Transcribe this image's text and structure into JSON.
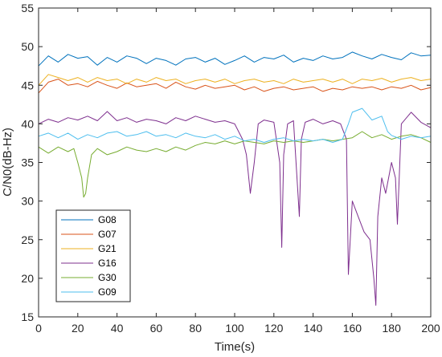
{
  "chart_data": {
    "type": "line",
    "xlabel": "Time(s)",
    "ylabel": "C/N0(dB-Hz)",
    "xlim": [
      0,
      200
    ],
    "ylim": [
      15,
      55
    ],
    "x_ticks": [
      "0",
      "20",
      "40",
      "60",
      "80",
      "100",
      "120",
      "140",
      "160",
      "180",
      "200"
    ],
    "y_ticks": [
      "15",
      "20",
      "25",
      "30",
      "35",
      "40",
      "45",
      "50",
      "55"
    ],
    "grid": false,
    "legend_position": "lower-left",
    "series": [
      {
        "name": "G08",
        "color": "#0072BD",
        "points": [
          [
            0,
            47.5
          ],
          [
            5,
            48.8
          ],
          [
            10,
            48.0
          ],
          [
            15,
            49.0
          ],
          [
            20,
            48.5
          ],
          [
            25,
            48.7
          ],
          [
            30,
            47.6
          ],
          [
            35,
            48.6
          ],
          [
            40,
            48.0
          ],
          [
            45,
            48.8
          ],
          [
            50,
            48.5
          ],
          [
            55,
            47.8
          ],
          [
            60,
            48.5
          ],
          [
            65,
            48.2
          ],
          [
            70,
            47.6
          ],
          [
            75,
            48.4
          ],
          [
            80,
            48.6
          ],
          [
            85,
            48.0
          ],
          [
            90,
            48.5
          ],
          [
            95,
            47.7
          ],
          [
            100,
            48.2
          ],
          [
            105,
            48.8
          ],
          [
            110,
            48.0
          ],
          [
            115,
            48.6
          ],
          [
            120,
            48.4
          ],
          [
            125,
            48.9
          ],
          [
            130,
            48.0
          ],
          [
            135,
            48.5
          ],
          [
            140,
            48.2
          ],
          [
            145,
            48.8
          ],
          [
            150,
            48.4
          ],
          [
            155,
            48.6
          ],
          [
            160,
            49.3
          ],
          [
            165,
            48.8
          ],
          [
            170,
            48.4
          ],
          [
            175,
            49.0
          ],
          [
            180,
            48.6
          ],
          [
            185,
            48.3
          ],
          [
            190,
            49.2
          ],
          [
            195,
            48.8
          ],
          [
            200,
            48.9
          ]
        ]
      },
      {
        "name": "G07",
        "color": "#D95319",
        "points": [
          [
            0,
            44.0
          ],
          [
            5,
            45.4
          ],
          [
            10,
            45.8
          ],
          [
            15,
            45.0
          ],
          [
            20,
            45.2
          ],
          [
            25,
            44.8
          ],
          [
            30,
            45.5
          ],
          [
            35,
            45.0
          ],
          [
            40,
            44.6
          ],
          [
            45,
            45.3
          ],
          [
            50,
            44.8
          ],
          [
            55,
            45.0
          ],
          [
            60,
            45.2
          ],
          [
            65,
            44.6
          ],
          [
            70,
            45.4
          ],
          [
            75,
            44.8
          ],
          [
            80,
            44.5
          ],
          [
            85,
            45.0
          ],
          [
            90,
            44.6
          ],
          [
            95,
            44.8
          ],
          [
            100,
            45.0
          ],
          [
            105,
            44.4
          ],
          [
            110,
            44.8
          ],
          [
            115,
            44.2
          ],
          [
            120,
            44.6
          ],
          [
            125,
            44.8
          ],
          [
            130,
            44.4
          ],
          [
            135,
            44.6
          ],
          [
            140,
            44.8
          ],
          [
            145,
            44.2
          ],
          [
            150,
            44.6
          ],
          [
            155,
            44.4
          ],
          [
            160,
            44.8
          ],
          [
            165,
            44.6
          ],
          [
            170,
            44.8
          ],
          [
            175,
            44.4
          ],
          [
            180,
            44.8
          ],
          [
            185,
            44.6
          ],
          [
            190,
            45.0
          ],
          [
            195,
            44.4
          ],
          [
            200,
            44.7
          ]
        ]
      },
      {
        "name": "G21",
        "color": "#EDB120",
        "points": [
          [
            0,
            45.0
          ],
          [
            5,
            46.4
          ],
          [
            10,
            46.0
          ],
          [
            15,
            45.6
          ],
          [
            20,
            46.0
          ],
          [
            25,
            45.4
          ],
          [
            30,
            46.0
          ],
          [
            35,
            45.6
          ],
          [
            40,
            45.8
          ],
          [
            45,
            45.2
          ],
          [
            50,
            45.8
          ],
          [
            55,
            45.4
          ],
          [
            60,
            46.0
          ],
          [
            65,
            45.6
          ],
          [
            70,
            45.8
          ],
          [
            75,
            45.2
          ],
          [
            80,
            45.6
          ],
          [
            85,
            45.8
          ],
          [
            90,
            45.4
          ],
          [
            95,
            45.8
          ],
          [
            100,
            45.2
          ],
          [
            105,
            45.6
          ],
          [
            110,
            45.8
          ],
          [
            115,
            45.4
          ],
          [
            120,
            45.6
          ],
          [
            125,
            45.2
          ],
          [
            130,
            45.8
          ],
          [
            135,
            45.4
          ],
          [
            140,
            45.6
          ],
          [
            145,
            45.8
          ],
          [
            150,
            45.4
          ],
          [
            155,
            45.8
          ],
          [
            160,
            45.2
          ],
          [
            165,
            45.8
          ],
          [
            170,
            45.6
          ],
          [
            175,
            45.9
          ],
          [
            180,
            45.4
          ],
          [
            185,
            45.8
          ],
          [
            190,
            46.0
          ],
          [
            195,
            45.6
          ],
          [
            200,
            45.8
          ]
        ]
      },
      {
        "name": "G16",
        "color": "#7E2F8E",
        "points": [
          [
            0,
            40.0
          ],
          [
            5,
            40.6
          ],
          [
            10,
            40.2
          ],
          [
            15,
            40.8
          ],
          [
            20,
            40.5
          ],
          [
            25,
            41.0
          ],
          [
            30,
            40.4
          ],
          [
            35,
            41.6
          ],
          [
            40,
            40.4
          ],
          [
            45,
            40.8
          ],
          [
            50,
            40.2
          ],
          [
            55,
            40.6
          ],
          [
            60,
            40.4
          ],
          [
            65,
            40.0
          ],
          [
            70,
            40.8
          ],
          [
            75,
            40.4
          ],
          [
            80,
            41.0
          ],
          [
            85,
            40.6
          ],
          [
            90,
            40.2
          ],
          [
            95,
            40.4
          ],
          [
            100,
            40.0
          ],
          [
            104,
            38.0
          ],
          [
            106,
            36.0
          ],
          [
            108,
            31.0
          ],
          [
            110,
            35.0
          ],
          [
            112,
            40.0
          ],
          [
            115,
            40.5
          ],
          [
            120,
            40.2
          ],
          [
            123,
            35.0
          ],
          [
            124,
            24.0
          ],
          [
            125,
            36.0
          ],
          [
            127,
            40.0
          ],
          [
            130,
            40.4
          ],
          [
            133,
            28.0
          ],
          [
            134,
            38.0
          ],
          [
            136,
            40.2
          ],
          [
            140,
            40.6
          ],
          [
            145,
            40.0
          ],
          [
            150,
            40.4
          ],
          [
            154,
            40.0
          ],
          [
            157,
            38.0
          ],
          [
            158,
            20.5
          ],
          [
            160,
            30.0
          ],
          [
            163,
            28.0
          ],
          [
            166,
            26.0
          ],
          [
            169,
            25.0
          ],
          [
            171,
            20.0
          ],
          [
            172,
            16.5
          ],
          [
            173,
            28.0
          ],
          [
            175,
            33.0
          ],
          [
            177,
            31.0
          ],
          [
            180,
            35.0
          ],
          [
            182,
            33.0
          ],
          [
            183,
            27.0
          ],
          [
            185,
            40.0
          ],
          [
            190,
            41.5
          ],
          [
            195,
            40.2
          ],
          [
            200,
            39.5
          ]
        ]
      },
      {
        "name": "G30",
        "color": "#77AC30",
        "points": [
          [
            0,
            37.0
          ],
          [
            5,
            36.2
          ],
          [
            10,
            37.0
          ],
          [
            15,
            36.4
          ],
          [
            18,
            36.8
          ],
          [
            20,
            35.0
          ],
          [
            22,
            33.0
          ],
          [
            23,
            30.5
          ],
          [
            24,
            31.0
          ],
          [
            25,
            33.0
          ],
          [
            27,
            36.0
          ],
          [
            30,
            36.8
          ],
          [
            35,
            36.0
          ],
          [
            40,
            36.4
          ],
          [
            45,
            37.0
          ],
          [
            50,
            36.6
          ],
          [
            55,
            36.4
          ],
          [
            60,
            36.8
          ],
          [
            65,
            36.4
          ],
          [
            70,
            37.0
          ],
          [
            75,
            36.6
          ],
          [
            80,
            37.2
          ],
          [
            85,
            37.6
          ],
          [
            90,
            37.4
          ],
          [
            95,
            37.8
          ],
          [
            100,
            37.4
          ],
          [
            105,
            37.8
          ],
          [
            110,
            37.6
          ],
          [
            115,
            37.4
          ],
          [
            120,
            37.8
          ],
          [
            125,
            37.6
          ],
          [
            130,
            37.8
          ],
          [
            135,
            37.6
          ],
          [
            140,
            37.8
          ],
          [
            145,
            38.0
          ],
          [
            150,
            37.8
          ],
          [
            155,
            38.0
          ],
          [
            160,
            38.2
          ],
          [
            165,
            39.0
          ],
          [
            170,
            38.2
          ],
          [
            175,
            38.6
          ],
          [
            180,
            38.0
          ],
          [
            185,
            38.4
          ],
          [
            190,
            38.6
          ],
          [
            195,
            38.2
          ],
          [
            200,
            37.6
          ]
        ]
      },
      {
        "name": "G09",
        "color": "#4DBEEE",
        "points": [
          [
            0,
            38.4
          ],
          [
            5,
            38.8
          ],
          [
            10,
            38.2
          ],
          [
            15,
            38.8
          ],
          [
            20,
            38.0
          ],
          [
            25,
            38.6
          ],
          [
            30,
            38.2
          ],
          [
            35,
            38.8
          ],
          [
            40,
            39.0
          ],
          [
            45,
            38.4
          ],
          [
            50,
            38.6
          ],
          [
            55,
            39.0
          ],
          [
            60,
            38.4
          ],
          [
            65,
            38.6
          ],
          [
            70,
            38.2
          ],
          [
            75,
            38.8
          ],
          [
            80,
            38.4
          ],
          [
            85,
            38.2
          ],
          [
            90,
            38.6
          ],
          [
            95,
            38.0
          ],
          [
            100,
            38.4
          ],
          [
            105,
            37.8
          ],
          [
            110,
            38.0
          ],
          [
            115,
            37.6
          ],
          [
            120,
            38.0
          ],
          [
            125,
            38.2
          ],
          [
            130,
            37.8
          ],
          [
            135,
            38.0
          ],
          [
            140,
            37.8
          ],
          [
            145,
            38.0
          ],
          [
            150,
            37.6
          ],
          [
            155,
            38.0
          ],
          [
            158,
            40.0
          ],
          [
            160,
            41.5
          ],
          [
            165,
            42.0
          ],
          [
            170,
            40.5
          ],
          [
            175,
            41.0
          ],
          [
            178,
            39.0
          ],
          [
            180,
            38.5
          ],
          [
            185,
            38.0
          ],
          [
            190,
            38.4
          ],
          [
            195,
            38.2
          ],
          [
            200,
            38.4
          ]
        ]
      }
    ]
  }
}
